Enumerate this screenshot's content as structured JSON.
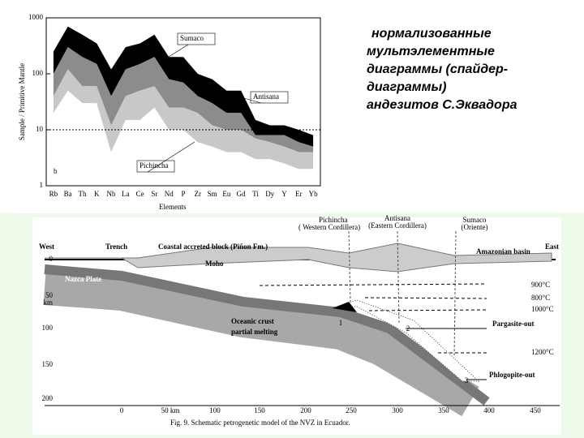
{
  "heading": [
    "нормализованные",
    "мультэлементные",
    "диаграммы  (спайдер-",
    "диаграммы)",
    "андезитов С.Эквадора"
  ],
  "chart_data": {
    "type": "band",
    "ylabel": "Sample / Primitive Mantle",
    "xlabel": "Elements",
    "panel_label": "b",
    "categories": [
      "Rb",
      "Ba",
      "Th",
      "K",
      "Nb",
      "La",
      "Ce",
      "Sr",
      "Nd",
      "P",
      "Zr",
      "Sm",
      "Eu",
      "Gd",
      "Ti",
      "Dy",
      "Y",
      "Er",
      "Yb"
    ],
    "log_scale": true,
    "ylim": [
      1,
      1000
    ],
    "yticks": [
      1,
      10,
      100,
      1000
    ],
    "reference_line": 10,
    "series": [
      {
        "name": "Sumaco",
        "color": "#000000",
        "values": [
          250,
          700,
          500,
          350,
          120,
          300,
          350,
          500,
          200,
          200,
          100,
          80,
          50,
          50,
          15,
          12,
          12,
          10,
          8
        ],
        "lower_values": [
          100,
          300,
          200,
          150,
          40,
          120,
          150,
          200,
          80,
          70,
          40,
          30,
          20,
          20,
          8,
          8,
          8,
          6,
          5
        ]
      },
      {
        "name": "Antisana",
        "color": "#8c8c8c",
        "values": [
          100,
          300,
          200,
          150,
          40,
          120,
          150,
          200,
          80,
          70,
          40,
          30,
          20,
          20,
          8,
          8,
          8,
          6,
          5
        ],
        "lower_values": [
          40,
          120,
          60,
          60,
          12,
          40,
          50,
          60,
          25,
          25,
          20,
          12,
          10,
          10,
          7,
          6,
          5,
          4,
          4
        ]
      },
      {
        "name": "Pichincha",
        "color": "#c8c8c8",
        "values": [
          40,
          120,
          60,
          60,
          12,
          40,
          50,
          60,
          25,
          25,
          20,
          12,
          10,
          10,
          7,
          6,
          5,
          4,
          4
        ],
        "lower_values": [
          20,
          50,
          30,
          30,
          4,
          15,
          15,
          25,
          10,
          10,
          6,
          5,
          4,
          4,
          3,
          3,
          2.5,
          2,
          2
        ]
      }
    ]
  },
  "section": {
    "west": "West",
    "east": "East",
    "trench": "Trench",
    "block": "Coastal accreted block (Piñon Fm.)",
    "basin": "Amazonian basin",
    "moho": "Moho",
    "plate": "Nazca Plate",
    "melting": [
      "Oceanic crust",
      "partial melting"
    ],
    "volcanoes": [
      [
        "Pichincha",
        "( Western Cordillera)"
      ],
      [
        "Antisana",
        "(Eastern Cordillera)"
      ],
      [
        "Sumaco",
        "(Oriente)"
      ]
    ],
    "isotherms": [
      "900°C",
      "800°C",
      "1000°C",
      "1200°C"
    ],
    "pargasite": "Pargasite-out",
    "phlogopite": "Phlogopite-out",
    "stages": [
      "1",
      "2",
      "3"
    ],
    "depth_labels": [
      "0",
      "50\nkm",
      "100",
      "150",
      "200"
    ],
    "distance_labels": [
      "0",
      "50 km",
      "100",
      "150",
      "200",
      "250",
      "300",
      "350",
      "400",
      "450"
    ],
    "caption": "Fig. 9. Schematic petrogenetic model of the NVZ in Ecuador."
  }
}
